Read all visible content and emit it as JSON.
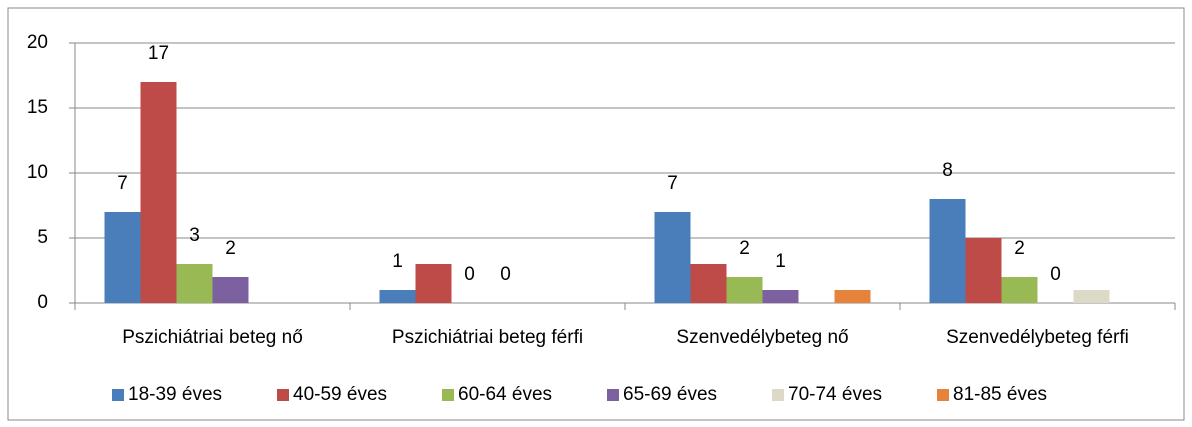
{
  "chart_data": {
    "type": "bar",
    "categories": [
      "Pszichiátriai beteg nő",
      "Pszichiátriai beteg férfi",
      "Szenvedélybeteg nő",
      "Szenvedélybeteg férfi"
    ],
    "series": [
      {
        "name": "18-39 éves",
        "color": "#4a7ebb",
        "values": [
          7,
          1,
          7,
          8
        ],
        "value_labels": [
          "7",
          "1",
          "7",
          "8"
        ]
      },
      {
        "name": "40-59 éves",
        "color": "#be4b48",
        "values": [
          17,
          3,
          3,
          5
        ],
        "value_labels": [
          "17",
          null,
          null,
          null
        ]
      },
      {
        "name": "60-64 éves",
        "color": "#98b954",
        "values": [
          3,
          0,
          2,
          2
        ],
        "value_labels": [
          "3",
          "0",
          "2",
          "2"
        ]
      },
      {
        "name": "65-69 éves",
        "color": "#7d60a0",
        "values": [
          2,
          0,
          1,
          0
        ],
        "value_labels": [
          "2",
          "0",
          "1",
          "0"
        ]
      },
      {
        "name": "70-74 éves",
        "color": "#dcdac6",
        "values": [
          null,
          null,
          null,
          1
        ]
      },
      {
        "name": "81-85 éves",
        "color": "#e6833a",
        "values": [
          null,
          null,
          1,
          null
        ]
      }
    ],
    "ylim": [
      0,
      20
    ],
    "yticks": [
      0,
      5,
      10,
      15,
      20
    ],
    "grid": true,
    "legend": "bottom"
  }
}
